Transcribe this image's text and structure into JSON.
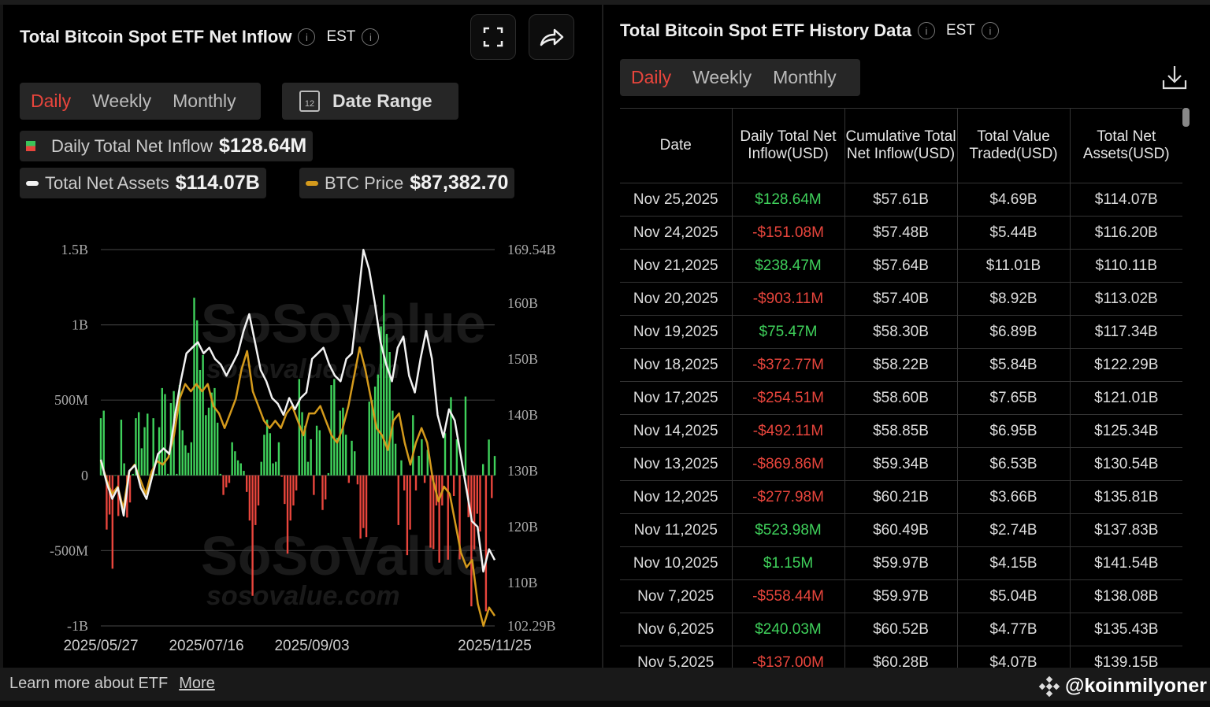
{
  "left": {
    "title": "Total Bitcoin Spot ETF Net Inflow",
    "timezone": "EST",
    "tabs": [
      "Daily",
      "Weekly",
      "Monthly"
    ],
    "active_tab": "Daily",
    "date_range_label": "Date Range",
    "calendar_day": "12",
    "legend": {
      "inflow_label": "Daily Total Net Inflow",
      "inflow_value": "$128.64M",
      "assets_label": "Total Net Assets",
      "assets_value": "$114.07B",
      "btc_label": "BTC Price",
      "btc_value": "$87,382.70"
    },
    "watermark": "SoSoValue",
    "watermark_url": "sosovalue.com"
  },
  "chart_data": {
    "type": "bar",
    "title": "Total Bitcoin Spot ETF Net Inflow",
    "y_left_ticks": [
      "1.5B",
      "1B",
      "500M",
      "0",
      "-500M",
      "-1B"
    ],
    "y_left_range_musd": [
      -1000,
      1500
    ],
    "y_right_ticks": [
      "169.54B",
      "160B",
      "150B",
      "140B",
      "130B",
      "120B",
      "110B",
      "102.29B"
    ],
    "y_right_range_busd": [
      102.29,
      169.54
    ],
    "x_ticks": [
      "2025/05/27",
      "2025/07/16",
      "2025/09/03",
      "2025/11/25"
    ],
    "x_range": [
      "2025/05/27",
      "2025/11/25"
    ],
    "colors": {
      "positive": "#3fd15b",
      "negative": "#e8453c",
      "net_assets": "#f2f2f2",
      "btc_price": "#d49a1c"
    },
    "series": [
      {
        "name": "Daily Total Net Inflow (M USD)",
        "values": [
          380,
          430,
          -360,
          -260,
          -620,
          0,
          -270,
          370,
          80,
          -280,
          -180,
          10,
          380,
          420,
          180,
          320,
          410,
          10,
          380,
          10,
          320,
          580,
          540,
          10,
          480,
          560,
          10,
          600,
          300,
          200,
          150,
          220,
          1180,
          1030,
          700,
          800,
          400,
          450,
          550,
          580,
          350,
          10,
          -130,
          -80,
          -50,
          220,
          160,
          100,
          80,
          30,
          -110,
          -300,
          -800,
          -330,
          -200,
          90,
          270,
          370,
          280,
          80,
          90,
          220,
          -10,
          -190,
          -520,
          -300,
          -200,
          -100,
          640,
          420,
          330,
          90,
          240,
          -130,
          330,
          300,
          -230,
          -160,
          15,
          600,
          640,
          250,
          430,
          450,
          270,
          -50,
          230,
          160,
          -60,
          -420,
          -350,
          -410,
          490,
          500,
          590,
          670,
          990,
          1200,
          940,
          820,
          430,
          210,
          -330,
          100,
          -100,
          -530,
          -360,
          400,
          -100,
          130,
          240,
          -50,
          170,
          -480,
          -490,
          -200,
          -580,
          -200,
          280,
          -560,
          520,
          -137,
          240,
          -558,
          1.15,
          524,
          -278,
          -870,
          -492,
          -255,
          -373,
          75,
          -903,
          238,
          -151,
          129
        ]
      },
      {
        "name": "Total Net Assets (B USD)",
        "values": [
          132,
          128,
          125,
          127,
          122,
          130,
          131,
          127,
          125,
          129,
          133,
          134,
          133,
          140,
          146,
          151,
          152,
          153,
          151,
          152,
          150,
          149,
          147,
          149,
          151,
          155,
          158,
          153,
          148,
          146,
          143,
          142,
          140,
          143,
          141,
          143,
          144,
          150,
          151,
          152,
          149,
          147,
          146,
          150,
          151,
          160,
          169.5,
          166,
          160,
          153,
          149,
          146,
          152,
          154,
          147,
          144,
          150,
          155,
          150,
          140,
          136,
          141,
          139,
          133,
          127,
          121,
          120,
          112,
          116,
          114.07
        ]
      },
      {
        "name": "BTC Price (K USD)",
        "values": [
          108.5,
          106,
          104,
          105,
          102,
          107,
          108,
          106,
          104,
          107,
          108.5,
          108,
          109,
          112,
          117,
          119,
          118,
          119,
          118,
          119,
          116,
          115,
          113,
          115,
          117,
          121,
          123.5,
          118,
          116,
          114,
          113,
          114,
          113,
          115,
          116,
          114,
          112,
          115,
          115,
          116,
          114,
          112,
          111,
          113,
          116,
          120,
          124,
          121,
          117,
          113,
          112,
          110,
          114,
          115,
          111,
          108,
          111,
          113,
          111,
          106,
          103,
          105,
          104,
          100,
          96,
          94,
          95,
          89,
          86,
          88.5,
          87.38
        ]
      }
    ]
  },
  "footer": {
    "learn_more": "Learn more about ETF",
    "more_link": "More",
    "handle": "@koinmilyoner"
  },
  "right": {
    "title": "Total Bitcoin Spot ETF History Data",
    "timezone": "EST",
    "tabs": [
      "Daily",
      "Weekly",
      "Monthly"
    ],
    "active_tab": "Daily",
    "columns": [
      "Date",
      "Daily Total Net Inflow(USD)",
      "Cumulative Total Net Inflow(USD)",
      "Total Value Traded(USD)",
      "Total Net Assets(USD)"
    ],
    "rows": [
      [
        "Nov 25,2025",
        "$128.64M",
        "$57.61B",
        "$4.69B",
        "$114.07B"
      ],
      [
        "Nov 24,2025",
        "-$151.08M",
        "$57.48B",
        "$5.44B",
        "$116.20B"
      ],
      [
        "Nov 21,2025",
        "$238.47M",
        "$57.64B",
        "$11.01B",
        "$110.11B"
      ],
      [
        "Nov 20,2025",
        "-$903.11M",
        "$57.40B",
        "$8.92B",
        "$113.02B"
      ],
      [
        "Nov 19,2025",
        "$75.47M",
        "$58.30B",
        "$6.89B",
        "$117.34B"
      ],
      [
        "Nov 18,2025",
        "-$372.77M",
        "$58.22B",
        "$5.84B",
        "$122.29B"
      ],
      [
        "Nov 17,2025",
        "-$254.51M",
        "$58.60B",
        "$7.65B",
        "$121.01B"
      ],
      [
        "Nov 14,2025",
        "-$492.11M",
        "$58.85B",
        "$6.95B",
        "$125.34B"
      ],
      [
        "Nov 13,2025",
        "-$869.86M",
        "$59.34B",
        "$6.53B",
        "$130.54B"
      ],
      [
        "Nov 12,2025",
        "-$277.98M",
        "$60.21B",
        "$3.66B",
        "$135.81B"
      ],
      [
        "Nov 11,2025",
        "$523.98M",
        "$60.49B",
        "$2.74B",
        "$137.83B"
      ],
      [
        "Nov 10,2025",
        "$1.15M",
        "$59.97B",
        "$4.15B",
        "$141.54B"
      ],
      [
        "Nov 7,2025",
        "-$558.44M",
        "$59.97B",
        "$5.04B",
        "$138.08B"
      ],
      [
        "Nov 6,2025",
        "$240.03M",
        "$60.52B",
        "$4.77B",
        "$135.43B"
      ],
      [
        "Nov 5,2025",
        "-$137.00M",
        "$60.28B",
        "$4.07B",
        "$139.15B"
      ]
    ]
  }
}
